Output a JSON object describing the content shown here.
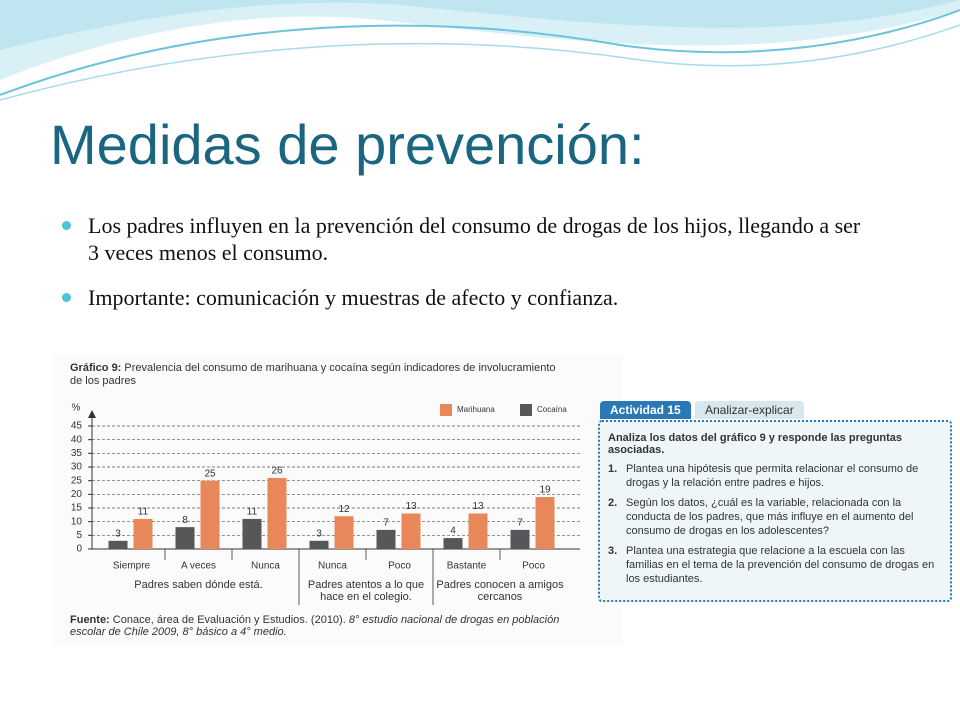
{
  "slide": {
    "title": "Medidas de prevención:",
    "bullets": [
      "Los padres influyen en la prevención del consumo de drogas de los hijos, llegando a ser 3 veces menos el consumo.",
      "Importante: comunicación y muestras de afecto y confianza."
    ]
  },
  "chart_data": {
    "type": "bar",
    "title_label": "Gráfico 9:",
    "title": "Prevalencia del consumo de marihuana y cocaína según indicadores de involucramiento de los padres",
    "y_label": "%",
    "groups": [
      {
        "label": "Padres saben dónde está.",
        "categories": [
          "Siempre",
          "A veces",
          "Nunca"
        ]
      },
      {
        "label": "Padres atentos a lo que hace en el colegio.",
        "categories": [
          "Nunca",
          "Poco"
        ]
      },
      {
        "label": "Padres conocen a amigos cercanos",
        "categories": [
          "Bastante",
          "Poco"
        ]
      }
    ],
    "series": [
      {
        "name": "Cocaína",
        "color": "#555759",
        "values": [
          3,
          8,
          11,
          3,
          7,
          4,
          7
        ]
      },
      {
        "name": "Marihuana",
        "color": "#e8875a",
        "values": [
          11,
          25,
          26,
          12,
          13,
          13,
          19
        ]
      }
    ],
    "legend_order": [
      1,
      0
    ],
    "ylim": [
      0,
      45
    ],
    "yticks": [
      0,
      5,
      10,
      15,
      20,
      25,
      30,
      35,
      40,
      45
    ],
    "grid": true,
    "source": {
      "label": "Fuente:",
      "text": "Conace, área de Evaluación y Estudios. (2010).",
      "work": "8° estudio nacional de drogas en población escolar de Chile 2009, 8° básico a 4° medio."
    }
  },
  "activity": {
    "tab": "Actividad 15",
    "tab2": "Analizar-explicar",
    "heading": "Analiza los datos del gráfico 9 y responde las preguntas asociadas.",
    "items": [
      {
        "number": "1.",
        "text": "Plantea una hipótesis que permita relacionar el consumo de drogas y la relación entre padres e hijos."
      },
      {
        "number": "2.",
        "text": "Según los datos, ¿cuál es la variable, relacionada con la conducta de los padres, que más influye en el aumento del consumo de drogas en los adolescentes?"
      },
      {
        "number": "3.",
        "text": "Plantea una estrategia que relacione a la escuela con las familias en el tema de la prevención del consumo de drogas en los estudiantes."
      }
    ]
  }
}
